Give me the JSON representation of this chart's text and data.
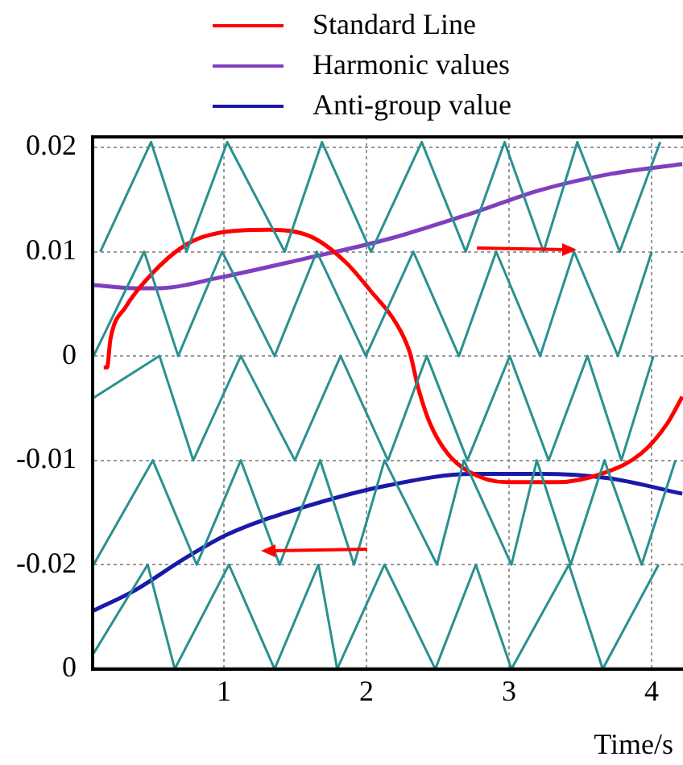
{
  "chart_data": {
    "type": "line",
    "xlabel": "Time/s",
    "legend": "top",
    "grid": true,
    "marker": "none",
    "line_style": "solid",
    "xlim": [
      0.08,
      4.22
    ],
    "xticks": [
      1,
      2,
      3,
      4
    ],
    "ylim": [
      -0.03,
      0.021
    ],
    "yticks": [
      0.02,
      0.01,
      0,
      -0.01,
      -0.02,
      {
        "value": -0.03,
        "label": "0"
      }
    ],
    "series": [
      {
        "color": "#2a9090",
        "x": [
          0.134,
          0.49,
          0.739,
          1.024,
          1.427,
          1.688,
          2.032,
          2.388,
          2.696,
          2.969,
          3.242,
          3.479,
          3.776,
          4.06
        ],
        "values": [
          0.01,
          0.0205,
          0.01,
          0.0205,
          0.01,
          0.0205,
          0.01,
          0.0205,
          0.01,
          0.0205,
          0.01,
          0.0205,
          0.01,
          0.0205
        ]
      },
      {
        "color": "#2a9090",
        "x": [
          0.087,
          0.442,
          0.68,
          0.988,
          1.356,
          1.652,
          1.996,
          2.329,
          2.649,
          2.91,
          3.218,
          3.456,
          3.764,
          4.001
        ],
        "values": [
          0,
          0.01,
          0,
          0.01,
          0,
          0.01,
          0,
          0.01,
          0,
          0.01,
          0,
          0.01,
          0,
          0.01
        ]
      },
      {
        "color": "#2a9090",
        "x": [
          0.087,
          0.549,
          0.786,
          1.119,
          1.498,
          1.819,
          2.151,
          2.423,
          2.708,
          3.005,
          3.278,
          3.55,
          3.788,
          4.013
        ],
        "values": [
          -0.004,
          0,
          -0.01,
          0,
          -0.01,
          0,
          -0.01,
          0,
          -0.01,
          0,
          -0.01,
          0,
          -0.01,
          0
        ]
      },
      {
        "color": "#2a9090",
        "x": [
          0.087,
          0.502,
          0.81,
          1.119,
          1.391,
          1.676,
          1.913,
          2.127,
          2.495,
          2.684,
          3.017,
          3.195,
          3.432,
          3.669,
          3.93,
          4.167
        ],
        "values": [
          -0.02,
          -0.01,
          -0.02,
          -0.01,
          -0.02,
          -0.01,
          -0.02,
          -0.01,
          -0.02,
          -0.01,
          -0.02,
          -0.01,
          -0.02,
          -0.01,
          -0.02,
          -0.01
        ]
      },
      {
        "color": "#2a9090",
        "x": [
          0.087,
          0.466,
          0.656,
          1.036,
          1.356,
          1.664,
          1.795,
          2.127,
          2.483,
          2.767,
          3.017,
          3.42,
          3.657,
          4.049
        ],
        "values": [
          -0.0285,
          -0.02,
          -0.03,
          -0.02,
          -0.03,
          -0.02,
          -0.03,
          -0.02,
          -0.03,
          -0.02,
          -0.03,
          -0.02,
          -0.03,
          -0.02
        ]
      },
      {
        "name": "Standard Line",
        "color": "#ff0000",
        "x": [
          0.158,
          0.181,
          0.205,
          0.312,
          0.49,
          0.727,
          0.964,
          1.32,
          1.617,
          1.854,
          2.032,
          2.21,
          2.305,
          2.364,
          2.447,
          2.566,
          2.708,
          2.981,
          3.337,
          3.669,
          3.93,
          4.108,
          4.215
        ],
        "values": [
          -0.0011,
          -0.0011,
          0.0016,
          0.0047,
          0.0078,
          0.0106,
          0.0118,
          0.0121,
          0.0114,
          0.009,
          0.0062,
          0.0031,
          0.0003,
          -0.0031,
          -0.0065,
          -0.0093,
          -0.011,
          -0.0121,
          -0.0121,
          -0.0112,
          -0.0093,
          -0.0065,
          -0.0039
        ]
      },
      {
        "name": "Harmonic values",
        "color": "#7f3fbf",
        "x": [
          0.087,
          0.371,
          0.549,
          0.964,
          1.558,
          2.151,
          2.744,
          3.218,
          3.693,
          4.215
        ],
        "values": [
          0.0068,
          0.0065,
          0.0065,
          0.0075,
          0.0093,
          0.0112,
          0.0137,
          0.0159,
          0.0174,
          0.0184
        ]
      },
      {
        "name": "Anti-group value",
        "color": "#1a1aaa",
        "x": [
          0.087,
          0.371,
          0.727,
          1.024,
          1.558,
          2.151,
          2.744,
          3.218,
          3.693,
          4.215
        ],
        "values": [
          -0.0244,
          -0.0225,
          -0.0194,
          -0.0171,
          -0.0145,
          -0.0124,
          -0.0113,
          -0.0113,
          -0.0117,
          -0.0132
        ]
      }
    ]
  }
}
